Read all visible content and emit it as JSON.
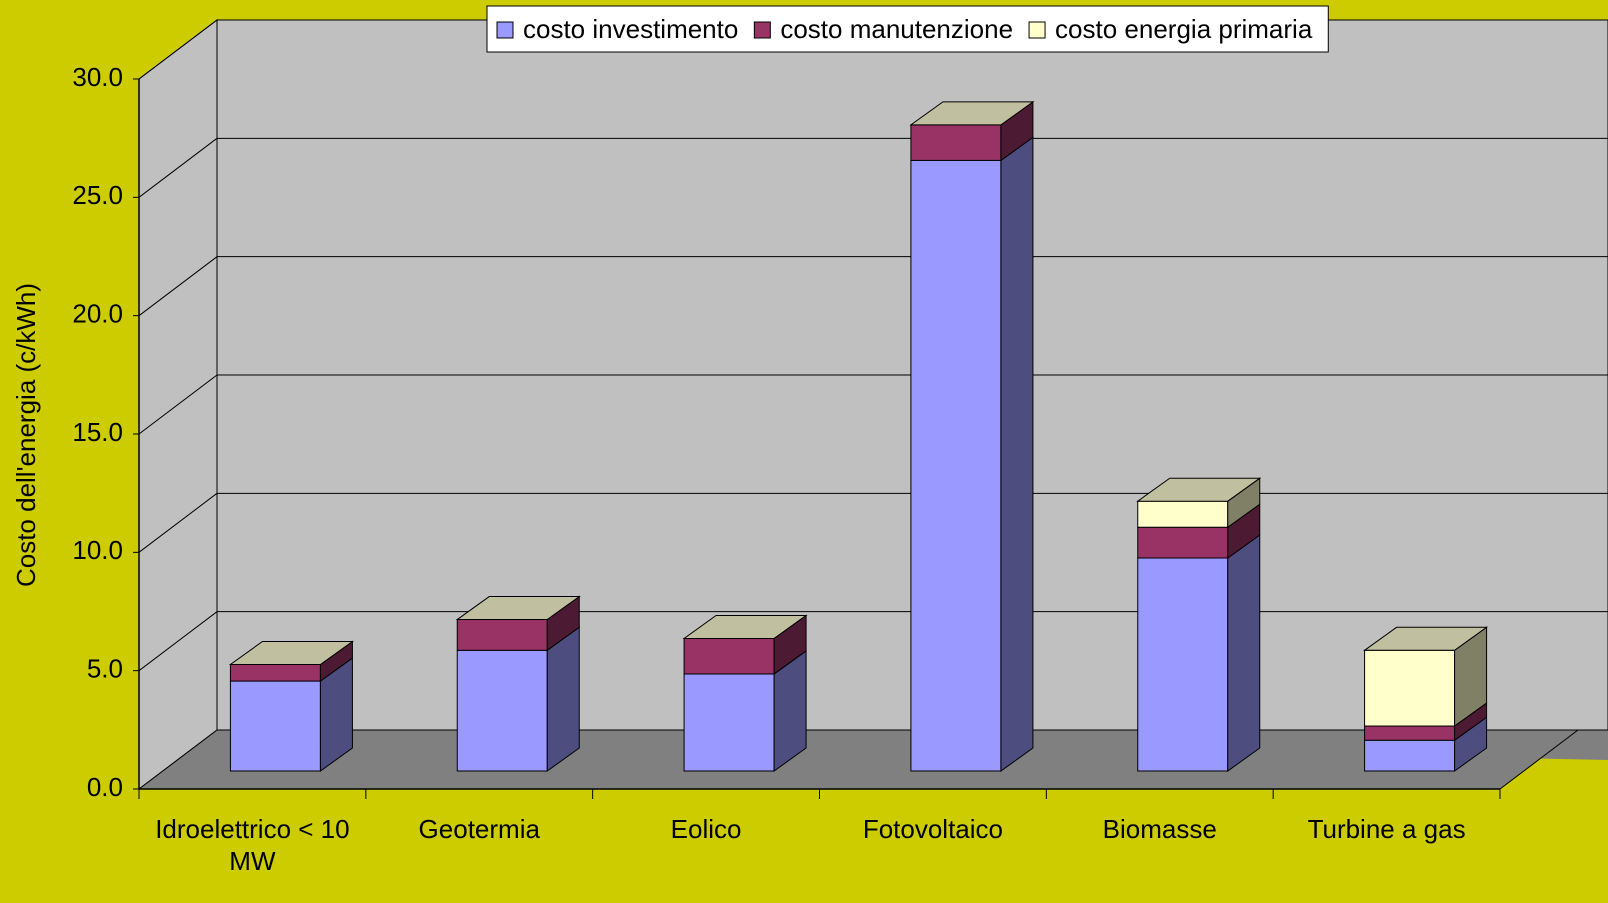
{
  "chart_data": {
    "type": "bar3d_stacked",
    "y_label": "Costo dell'energia (c/kWh)",
    "categories": [
      "Idroelettrico < 10 MW",
      "Geotermia",
      "Eolico",
      "Fotovoltaico",
      "Biomasse",
      "Turbine a gas"
    ],
    "series": [
      {
        "name": "costo investimento",
        "color": "#9999ff",
        "values": [
          3.8,
          5.1,
          4.1,
          25.8,
          9.0,
          1.3
        ]
      },
      {
        "name": "costo manutenzione",
        "color": "#993366",
        "values": [
          0.7,
          1.3,
          1.5,
          1.5,
          1.3,
          0.6
        ]
      },
      {
        "name": "costo energia primaria",
        "color": "#ffffcc",
        "values": [
          0,
          0,
          0,
          0,
          1.1,
          3.2
        ]
      }
    ],
    "ylim": [
      0,
      30
    ],
    "yticks": [
      {
        "value": 0,
        "label": "0.0"
      },
      {
        "value": 5,
        "label": "5.0"
      },
      {
        "value": 10,
        "label": "10.0"
      },
      {
        "value": 15,
        "label": "15.0"
      },
      {
        "value": 20,
        "label": "20.0"
      },
      {
        "value": 25,
        "label": "25.0"
      },
      {
        "value": 30,
        "label": "30.0"
      }
    ],
    "grid": true,
    "legend": "top"
  }
}
